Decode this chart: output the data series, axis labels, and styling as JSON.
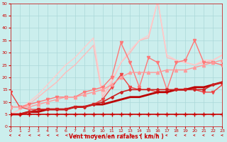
{
  "xlabel": "Vent moyen/en rafales ( km/h )",
  "xlim": [
    0,
    23
  ],
  "ylim": [
    0,
    50
  ],
  "xticks": [
    0,
    1,
    2,
    3,
    4,
    5,
    6,
    7,
    8,
    9,
    10,
    11,
    12,
    13,
    14,
    15,
    16,
    17,
    18,
    19,
    20,
    21,
    22,
    23
  ],
  "yticks": [
    0,
    5,
    10,
    15,
    20,
    25,
    30,
    35,
    40,
    45,
    50
  ],
  "bg_color": "#cbeeed",
  "grid_color": "#aad8d8",
  "xlabel_color": "#cc0000",
  "tick_color": "#cc0000",
  "lines": [
    {
      "x": [
        0,
        1,
        2,
        3,
        4,
        5,
        6,
        7,
        8,
        9,
        10,
        11,
        12,
        13,
        14,
        15,
        16,
        17,
        18,
        19,
        20,
        21,
        22,
        23
      ],
      "y": [
        5,
        5,
        5,
        5,
        5,
        5,
        5,
        5,
        5,
        5,
        5,
        5,
        5,
        5,
        5,
        5,
        5,
        5,
        5,
        5,
        5,
        5,
        5,
        5
      ],
      "color": "#cc0000",
      "lw": 1.2,
      "marker": "+",
      "ms": 4,
      "zorder": 6
    },
    {
      "x": [
        0,
        1,
        2,
        3,
        4,
        5,
        6,
        7,
        8,
        9,
        10,
        11,
        12,
        13,
        14,
        15,
        16,
        17,
        18,
        19,
        20,
        21,
        22,
        23
      ],
      "y": [
        5,
        5,
        6,
        6,
        7,
        7,
        7,
        8,
        8,
        9,
        9,
        10,
        11,
        12,
        12,
        13,
        14,
        14,
        15,
        15,
        16,
        16,
        17,
        18
      ],
      "color": "#bb0000",
      "lw": 2.0,
      "marker": null,
      "ms": 0,
      "zorder": 5
    },
    {
      "x": [
        0,
        1,
        2,
        3,
        4,
        5,
        6,
        7,
        8,
        9,
        10,
        11,
        12,
        13,
        14,
        15,
        16,
        17,
        18,
        19,
        20,
        21,
        22,
        23
      ],
      "y": [
        5,
        5,
        6,
        7,
        7,
        7,
        7,
        8,
        8,
        9,
        10,
        12,
        14,
        15,
        15,
        15,
        15,
        15,
        15,
        15,
        15,
        15,
        17,
        18
      ],
      "color": "#cc2222",
      "lw": 1.2,
      "marker": "D",
      "ms": 2,
      "zorder": 5
    },
    {
      "x": [
        0,
        1,
        2,
        3,
        4,
        5,
        6,
        7,
        8,
        9,
        10,
        11,
        12,
        13,
        14,
        15,
        16,
        17,
        18,
        19,
        20,
        21,
        22,
        23
      ],
      "y": [
        14,
        8,
        7,
        7,
        7,
        7,
        7,
        8,
        8,
        9,
        11,
        16,
        21,
        16,
        15,
        15,
        14,
        14,
        15,
        15,
        15,
        14,
        14,
        17
      ],
      "color": "#ee4444",
      "lw": 1.0,
      "marker": "v",
      "ms": 3,
      "zorder": 4
    },
    {
      "x": [
        0,
        1,
        2,
        3,
        4,
        5,
        6,
        7,
        8,
        9,
        10,
        11,
        12,
        13,
        14,
        15,
        16,
        17,
        18,
        19,
        20,
        21,
        22,
        23
      ],
      "y": [
        8,
        8,
        8,
        9,
        10,
        11,
        12,
        12,
        13,
        14,
        15,
        17,
        20,
        22,
        22,
        22,
        22,
        23,
        23,
        23,
        24,
        25,
        26,
        27
      ],
      "color": "#ff9999",
      "lw": 1.0,
      "marker": "^",
      "ms": 3,
      "zorder": 4
    },
    {
      "x": [
        0,
        1,
        2,
        3,
        4,
        5,
        6,
        7,
        8,
        9,
        10,
        11,
        12,
        13,
        14,
        15,
        16,
        17,
        18,
        19,
        20,
        21,
        22,
        23
      ],
      "y": [
        8,
        8,
        9,
        10,
        11,
        12,
        12,
        12,
        14,
        15,
        16,
        20,
        34,
        26,
        16,
        28,
        26,
        15,
        26,
        27,
        35,
        26,
        26,
        25
      ],
      "color": "#ff7777",
      "lw": 1.0,
      "marker": "v",
      "ms": 3,
      "zorder": 3
    },
    {
      "x": [
        0,
        1,
        2,
        3,
        4,
        5,
        6,
        7,
        8,
        9,
        10,
        11,
        12,
        13,
        14,
        15,
        16,
        17,
        18,
        19,
        20,
        21,
        22,
        23
      ],
      "y": [
        5,
        7,
        9,
        12,
        15,
        18,
        22,
        25,
        29,
        33,
        12,
        18,
        26,
        30,
        35,
        36,
        51,
        28,
        27,
        26,
        25,
        26,
        27,
        29
      ],
      "color": "#ffbbbb",
      "lw": 1.0,
      "marker": null,
      "ms": 0,
      "zorder": 2
    },
    {
      "x": [
        0,
        1,
        2,
        3,
        4,
        5,
        6,
        7,
        8,
        9,
        10,
        11,
        12,
        13,
        14,
        15,
        16,
        17,
        18,
        19,
        20,
        21,
        22,
        23
      ],
      "y": [
        5,
        7,
        10,
        13,
        17,
        21,
        25,
        28,
        32,
        36,
        13,
        19,
        26,
        31,
        35,
        37,
        51,
        29,
        27,
        26,
        25,
        27,
        27,
        29
      ],
      "color": "#ffcccc",
      "lw": 1.0,
      "marker": null,
      "ms": 0,
      "zorder": 2
    }
  ]
}
